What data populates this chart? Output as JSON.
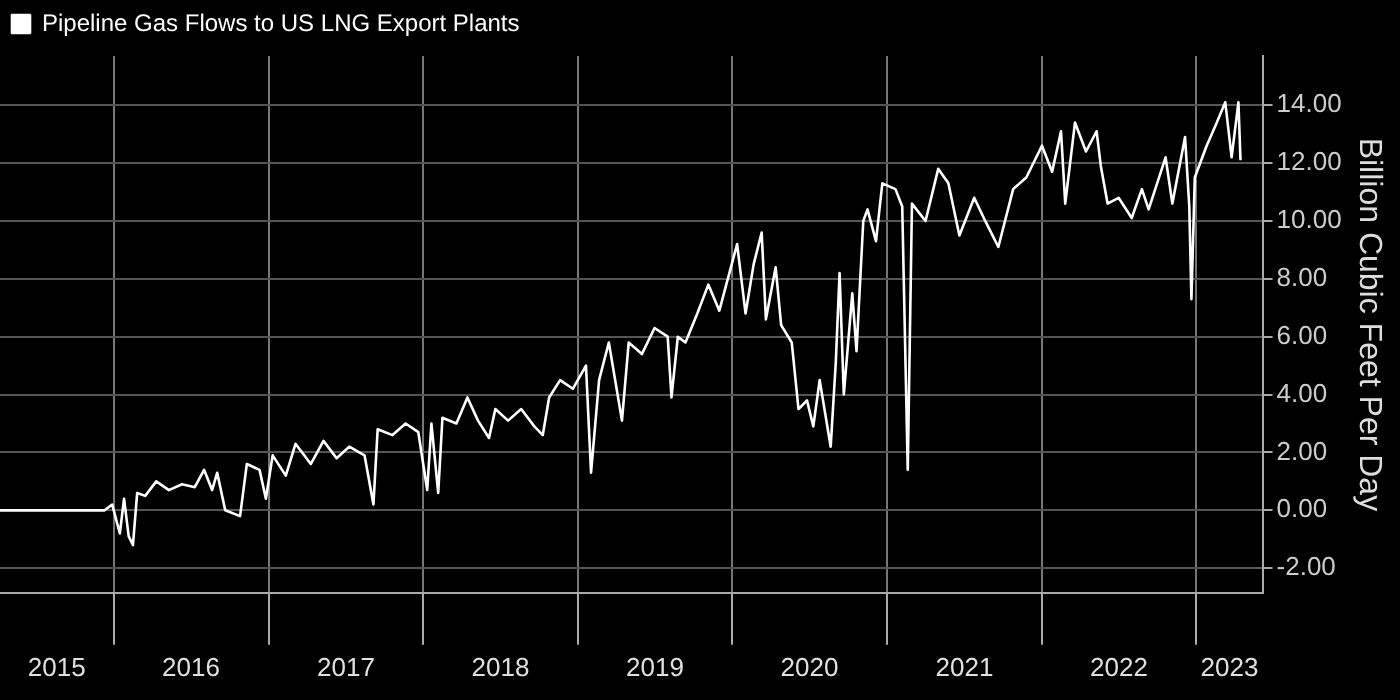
{
  "chart_data": {
    "type": "line",
    "ylabel": "Billion Cubic Feet Per Day",
    "legend": "top left",
    "grid": true,
    "marker": "none",
    "line_style": "solid",
    "xlim": [
      "2015-04-07",
      "2023-06-06"
    ],
    "xticks": [
      {
        "value": "2015-08-19",
        "label": "2015"
      },
      {
        "value": "2016-01-01",
        "label": null
      },
      {
        "value": "2016-07-01",
        "label": "2016"
      },
      {
        "value": "2017-01-01",
        "label": null
      },
      {
        "value": "2017-07-02",
        "label": "2017"
      },
      {
        "value": "2018-01-01",
        "label": null
      },
      {
        "value": "2018-07-02",
        "label": "2018"
      },
      {
        "value": "2019-01-01",
        "label": null
      },
      {
        "value": "2019-07-02",
        "label": "2019"
      },
      {
        "value": "2020-01-01",
        "label": null
      },
      {
        "value": "2020-07-01",
        "label": "2020"
      },
      {
        "value": "2021-01-01",
        "label": null
      },
      {
        "value": "2021-07-02",
        "label": "2021"
      },
      {
        "value": "2022-01-01",
        "label": null
      },
      {
        "value": "2022-07-02",
        "label": "2022"
      },
      {
        "value": "2023-01-01",
        "label": null
      },
      {
        "value": "2023-03-20",
        "label": "2023"
      }
    ],
    "ylim": [
      -2.85,
      15.7
    ],
    "yticks": [
      {
        "value": -2,
        "label": "-2.00"
      },
      {
        "value": 0,
        "label": "0.00"
      },
      {
        "value": 2,
        "label": "2.00"
      },
      {
        "value": 4,
        "label": "4.00"
      },
      {
        "value": 6,
        "label": "6.00"
      },
      {
        "value": 8,
        "label": "8.00"
      },
      {
        "value": 10,
        "label": "10.00"
      },
      {
        "value": 12,
        "label": "12.00"
      },
      {
        "value": 14,
        "label": "14.00"
      }
    ],
    "series": [
      {
        "name": "Pipeline Gas Flows to US LNG Export Plants",
        "color": "#ffffff",
        "x": [
          "2015-04-07",
          "2015-12-10",
          "2015-12-28",
          "2016-01-15",
          "2016-01-25",
          "2016-02-05",
          "2016-02-15",
          "2016-02-25",
          "2016-03-15",
          "2016-04-10",
          "2016-05-10",
          "2016-06-10",
          "2016-07-10",
          "2016-08-01",
          "2016-08-20",
          "2016-09-01",
          "2016-09-20",
          "2016-10-25",
          "2016-11-10",
          "2016-12-10",
          "2016-12-25",
          "2017-01-10",
          "2017-02-10",
          "2017-03-05",
          "2017-04-10",
          "2017-05-10",
          "2017-06-10",
          "2017-07-10",
          "2017-08-15",
          "2017-09-05",
          "2017-09-15",
          "2017-10-20",
          "2017-11-20",
          "2017-12-20",
          "2018-01-10",
          "2018-01-20",
          "2018-02-05",
          "2018-02-15",
          "2018-03-20",
          "2018-04-15",
          "2018-05-10",
          "2018-06-05",
          "2018-06-20",
          "2018-07-20",
          "2018-08-20",
          "2018-09-20",
          "2018-10-10",
          "2018-10-25",
          "2018-11-20",
          "2018-12-20",
          "2019-01-20",
          "2019-02-01",
          "2019-02-20",
          "2019-03-15",
          "2019-04-15",
          "2019-05-01",
          "2019-06-01",
          "2019-07-01",
          "2019-08-01",
          "2019-08-10",
          "2019-08-25",
          "2019-09-12",
          "2019-10-10",
          "2019-11-05",
          "2019-12-01",
          "2020-01-12",
          "2020-02-01",
          "2020-02-20",
          "2020-03-10",
          "2020-03-20",
          "2020-04-12",
          "2020-04-25",
          "2020-05-20",
          "2020-06-05",
          "2020-06-25",
          "2020-07-10",
          "2020-07-25",
          "2020-08-20",
          "2020-09-01",
          "2020-09-10",
          "2020-09-20",
          "2020-10-10",
          "2020-10-20",
          "2020-11-05",
          "2020-11-15",
          "2020-12-05",
          "2020-12-20",
          "2021-01-20",
          "2021-02-05",
          "2021-02-18",
          "2021-02-28",
          "2021-04-01",
          "2021-05-01",
          "2021-05-25",
          "2021-06-20",
          "2021-07-25",
          "2021-08-20",
          "2021-09-20",
          "2021-10-25",
          "2021-11-25",
          "2022-01-01",
          "2022-01-25",
          "2022-02-15",
          "2022-02-25",
          "2022-03-20",
          "2022-04-15",
          "2022-05-10",
          "2022-05-20",
          "2022-06-05",
          "2022-07-01",
          "2022-08-01",
          "2022-08-25",
          "2022-09-10",
          "2022-10-20",
          "2022-11-05",
          "2022-12-05",
          "2022-12-15",
          "2022-12-20",
          "2022-12-28",
          "2023-01-25",
          "2023-02-15",
          "2023-03-10",
          "2023-03-25",
          "2023-04-10",
          "2023-04-15"
        ],
        "values": [
          0,
          0,
          0.2,
          -0.8,
          0.4,
          -0.9,
          -1.2,
          0.6,
          0.5,
          1.0,
          0.7,
          0.9,
          0.8,
          1.4,
          0.7,
          1.3,
          0.0,
          -0.2,
          1.6,
          1.4,
          0.4,
          1.9,
          1.2,
          2.3,
          1.6,
          2.4,
          1.8,
          2.2,
          1.9,
          0.2,
          2.8,
          2.6,
          3.0,
          2.7,
          0.7,
          3.0,
          0.6,
          3.2,
          3.0,
          3.9,
          3.1,
          2.5,
          3.5,
          3.1,
          3.5,
          2.9,
          2.6,
          3.9,
          4.5,
          4.2,
          5.0,
          1.3,
          4.5,
          5.8,
          3.1,
          5.8,
          5.4,
          6.3,
          6.0,
          3.9,
          6.0,
          5.8,
          6.8,
          7.8,
          6.9,
          9.2,
          6.8,
          8.5,
          9.6,
          6.6,
          8.4,
          6.4,
          5.8,
          3.5,
          3.8,
          2.9,
          4.5,
          2.2,
          5.1,
          8.2,
          4.0,
          7.5,
          5.5,
          10.0,
          10.4,
          9.3,
          11.3,
          11.1,
          10.5,
          1.4,
          10.6,
          10.0,
          11.8,
          11.3,
          9.5,
          10.8,
          10.0,
          9.1,
          11.1,
          11.5,
          12.6,
          11.7,
          13.1,
          10.6,
          13.4,
          12.4,
          13.1,
          11.9,
          10.6,
          10.8,
          10.1,
          11.1,
          10.4,
          12.2,
          10.6,
          12.9,
          10.5,
          7.3,
          11.5,
          12.6,
          13.3,
          14.1,
          12.2,
          14.1,
          12.1
        ]
      }
    ]
  }
}
